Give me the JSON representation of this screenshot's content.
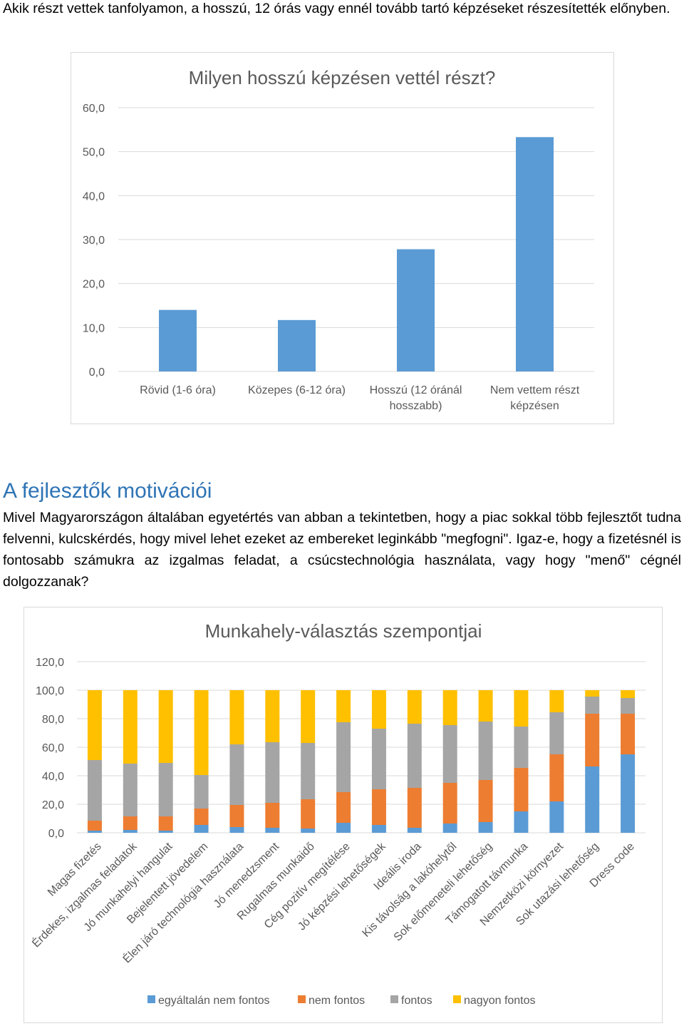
{
  "intro_text": "Akik részt vettek tanfolyamon, a hosszú, 12 órás vagy ennél tovább tartó képzéseket részesítették előnyben.",
  "section_heading": "A fejlesztők motivációi",
  "body_text": "Mivel Magyarországon általában egyetértés van abban a tekintetben, hogy a piac sokkal több fejlesztőt tudna felvenni, kulcskérdés, hogy mivel lehet ezeket az embereket leginkább \"megfogni\". Igaz-e, hogy a fizetésnél is fontosabb számukra az izgalmas feladat, a csúcstechnológia használata, vagy hogy \"menő\" cégnél dolgozzanak?",
  "colors": {
    "bar_blue": "#5B9BD5",
    "orange": "#ED7D31",
    "gray": "#A5A5A5",
    "yellow": "#FFC000",
    "axis_text": "#595959",
    "gridline": "#d9d9d9",
    "heading": "#2E74B5"
  },
  "chart_data": [
    {
      "type": "bar",
      "title": "Milyen hosszú képzésen vettél részt?",
      "categories": [
        "Rövid (1-6 óra)",
        "Közepes (6-12 óra)",
        "Hosszú (12 óránál hosszabb)",
        "Nem vettem részt képzésen"
      ],
      "values": [
        14.0,
        11.7,
        27.8,
        53.3
      ],
      "ylim": [
        0,
        60
      ],
      "yticks": [
        "0,0",
        "10,0",
        "20,0",
        "30,0",
        "40,0",
        "50,0",
        "60,0"
      ],
      "grid": true,
      "legend": false
    },
    {
      "type": "bar",
      "stacked": true,
      "title": "Munkahely-választás szempontjai",
      "categories": [
        "Magas fizetés",
        "Érdekes, izgalmas feladatok",
        "Jó munkahelyi hangulat",
        "Bejelentett jövedelem",
        "Élen járó technológia használata",
        "Jó menedzsment",
        "Rugalmas munkaidő",
        "Cég pozitív megítélése",
        "Jó képzési lehetőségek",
        "Ideális iroda",
        "Kis távolság a lakóhelytől",
        "Sok előmeneteli lehetőség",
        "Támogatott távmunka",
        "Nemzetközi környezet",
        "Sok utazási lehetőség",
        "Dress code"
      ],
      "series": [
        {
          "name": "egyáltalán nem fontos",
          "values": [
            1.5,
            2.0,
            1.5,
            5.5,
            4.0,
            3.5,
            3.0,
            7.0,
            5.5,
            3.5,
            6.5,
            7.5,
            15.0,
            22.0,
            46.5,
            55.0
          ]
        },
        {
          "name": "nem fontos",
          "values": [
            7.0,
            9.5,
            10.0,
            11.5,
            15.5,
            17.5,
            20.5,
            21.5,
            25.0,
            28.0,
            28.5,
            29.5,
            30.5,
            33.0,
            37.0,
            28.5
          ]
        },
        {
          "name": "fontos",
          "values": [
            42.5,
            37.0,
            37.5,
            23.5,
            42.5,
            42.5,
            39.5,
            49.0,
            42.5,
            45.0,
            40.5,
            41.0,
            29.0,
            29.5,
            12.0,
            11.0
          ]
        },
        {
          "name": "nagyon fontos",
          "values": [
            49.0,
            51.5,
            51.0,
            59.5,
            38.0,
            36.5,
            37.0,
            22.5,
            27.0,
            23.5,
            24.5,
            22.0,
            25.5,
            15.5,
            4.5,
            5.5
          ]
        }
      ],
      "ylim": [
        0,
        120
      ],
      "yticks": [
        "0,0",
        "20,0",
        "40,0",
        "60,0",
        "80,0",
        "100,0",
        "120,0"
      ],
      "grid": true,
      "legend": "bottom"
    }
  ]
}
